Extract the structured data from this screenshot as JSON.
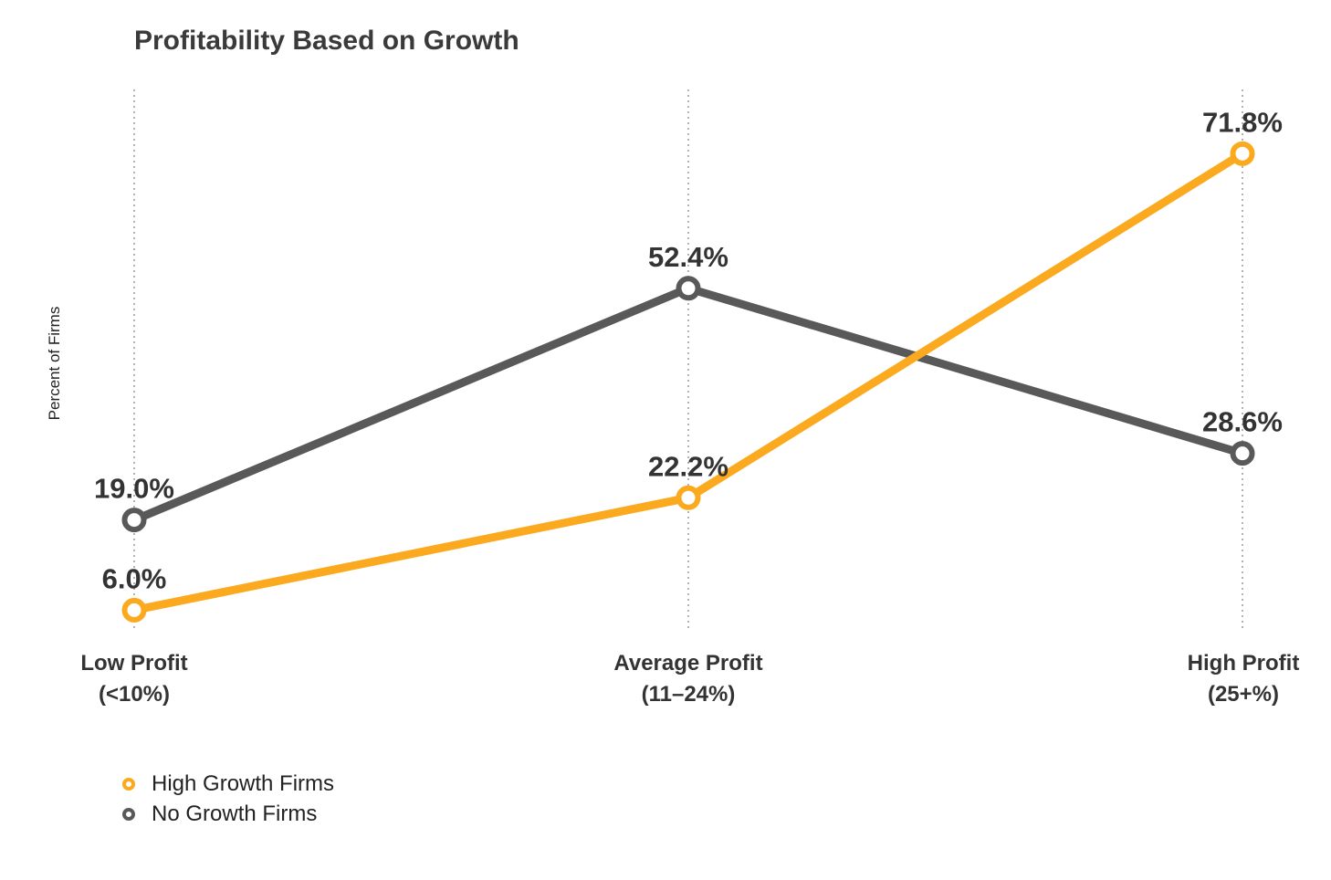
{
  "chart_data": {
    "type": "line",
    "title": "Profitability Based on Growth",
    "xlabel": "",
    "ylabel": "Percent of Firms",
    "ylim": [
      0,
      80
    ],
    "grid": "vertical dotted lines at categories",
    "legend": "bottom-left",
    "categories": [
      {
        "line1": "Low Profit",
        "line2": "(<10%)"
      },
      {
        "line1": "Average Profit",
        "line2": "(11–24%)"
      },
      {
        "line1": "High Profit",
        "line2": "(25+%)"
      }
    ],
    "series": [
      {
        "name": "High Growth Firms",
        "color": "#FBAA1F",
        "values": [
          6.0,
          22.2,
          71.8
        ],
        "labels": [
          "6.0%",
          "22.2%",
          "71.8%"
        ]
      },
      {
        "name": "No Growth Firms",
        "color": "#595959",
        "values": [
          19.0,
          52.4,
          28.6
        ],
        "labels": [
          "19.0%",
          "52.4%",
          "28.6%"
        ]
      }
    ]
  }
}
